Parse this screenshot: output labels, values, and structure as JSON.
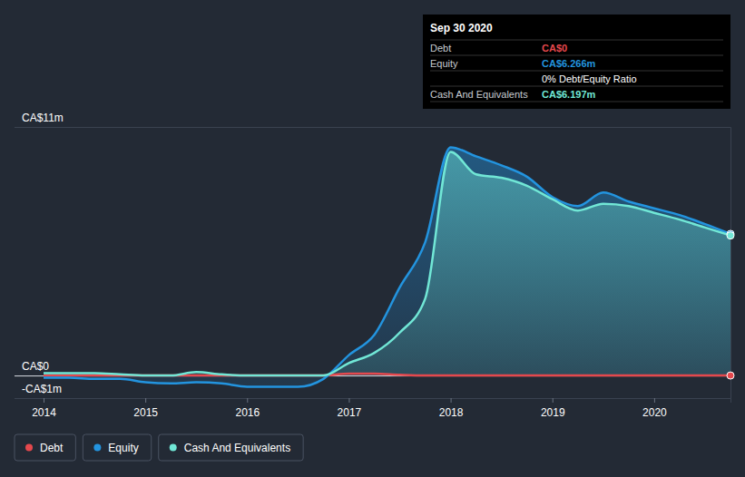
{
  "chart_data": {
    "type": "area",
    "x": [
      2014,
      2014.25,
      2014.5,
      2014.75,
      2015,
      2015.25,
      2015.5,
      2015.75,
      2016,
      2016.25,
      2016.5,
      2016.75,
      2017,
      2017.25,
      2017.5,
      2017.75,
      2018,
      2018.25,
      2018.5,
      2018.75,
      2019,
      2019.25,
      2019.5,
      2019.75,
      2020,
      2020.25,
      2020.5,
      2020.75
    ],
    "xlim": [
      2014,
      2020.75
    ],
    "xticks": [
      2014,
      2015,
      2016,
      2017,
      2018,
      2019,
      2020
    ],
    "ylim": [
      -1,
      11
    ],
    "yticks": [
      {
        "value": -1,
        "label": "-CA$1m"
      },
      {
        "value": 0,
        "label": "CA$0"
      },
      {
        "value": 11,
        "label": "CA$11m"
      }
    ],
    "grid": true,
    "legend": "bottom",
    "series": [
      {
        "name": "Debt",
        "color": "#e5484d",
        "type": "line",
        "values": [
          0,
          0,
          0,
          0,
          0,
          0,
          0,
          0,
          0,
          0,
          0,
          0,
          0.08,
          0.08,
          0.03,
          0,
          0,
          0,
          0,
          0,
          0,
          0,
          0,
          0,
          0,
          0,
          0,
          0
        ]
      },
      {
        "name": "Equity",
        "color": "#2394df",
        "type": "area",
        "values": [
          -0.1,
          -0.1,
          -0.15,
          -0.15,
          -0.3,
          -0.35,
          -0.3,
          -0.35,
          -0.5,
          -0.5,
          -0.5,
          -0.15,
          0.9,
          1.8,
          3.9,
          5.9,
          10.1,
          9.7,
          9.3,
          8.8,
          7.9,
          7.5,
          8.1,
          7.7,
          7.4,
          7.1,
          6.7,
          6.266
        ]
      },
      {
        "name": "Cash And Equivalents",
        "color": "#71e7d6",
        "type": "area",
        "values": [
          0.1,
          0.1,
          0.1,
          0.05,
          0,
          0,
          0.15,
          0.05,
          0,
          0,
          0,
          0,
          0.55,
          1.0,
          1.9,
          3.4,
          9.9,
          8.9,
          8.75,
          8.4,
          7.8,
          7.3,
          7.6,
          7.5,
          7.2,
          6.9,
          6.55,
          6.197
        ]
      }
    ],
    "tooltip": {
      "title": "Sep 30 2020",
      "rows": [
        {
          "label": "Debt",
          "value": "CA$0",
          "color": "#e5484d"
        },
        {
          "label": "Equity",
          "value": "CA$6.266m",
          "color": "#2394df"
        },
        {
          "value": "0% Debt/Equity Ratio",
          "color": "#ffffff"
        },
        {
          "label": "Cash And Equivalents",
          "value": "CA$6.197m",
          "color": "#71e7d6"
        }
      ]
    }
  }
}
